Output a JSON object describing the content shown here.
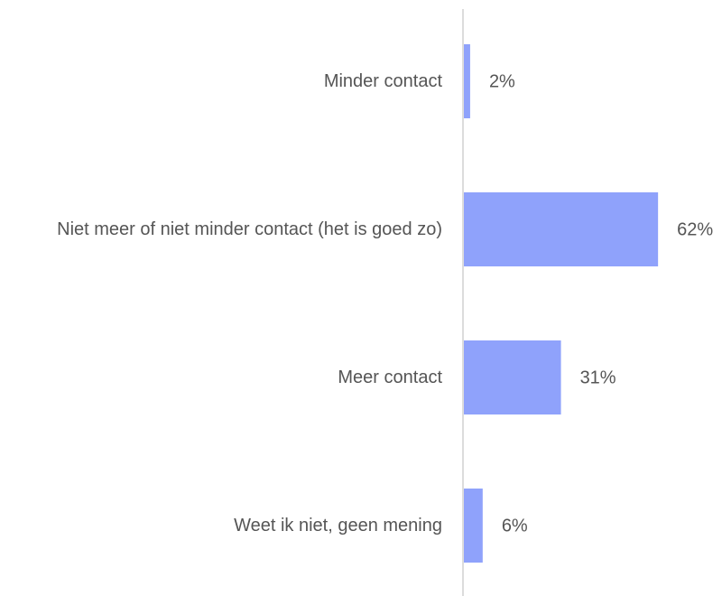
{
  "chart_data": {
    "type": "barh",
    "categories": [
      "Minder contact",
      "Niet meer of niet minder contact (het is goed zo)",
      "Meer contact",
      "Weet ik niet, geen mening"
    ],
    "values": [
      2,
      62,
      31,
      6
    ],
    "value_labels": [
      "2%",
      "62%",
      "31%",
      "6%"
    ],
    "color": "#8fa2fb"
  }
}
